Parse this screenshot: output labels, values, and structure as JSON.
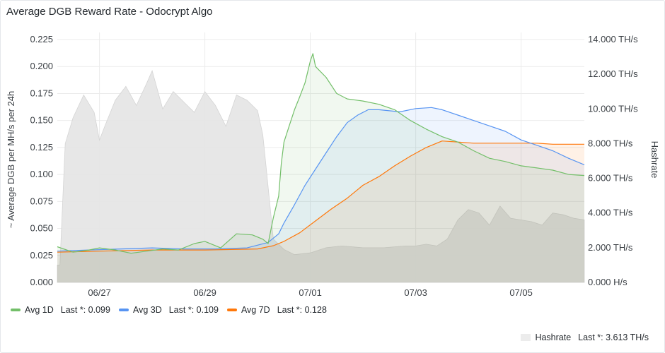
{
  "panel": {
    "title": "Average DGB Reward Rate - Odocrypt Algo"
  },
  "legend": {
    "avg1d": {
      "name": "Avg 1D",
      "last": "Last *: 0.099"
    },
    "avg3d": {
      "name": "Avg 3D",
      "last": "Last *: 0.109"
    },
    "avg7d": {
      "name": "Avg 7D",
      "last": "Last *: 0.128"
    },
    "hashrate": {
      "name": "Hashrate",
      "last": "Last *: 3.613 TH/s"
    }
  },
  "chart_data": {
    "type": "line",
    "ylabel": "~ Average DGB per MH/s per 24h",
    "y2label": "Hashrate",
    "ylim": [
      0,
      0.225
    ],
    "y2lim": [
      0,
      14
    ],
    "yticks": [
      "0.000",
      "0.025",
      "0.050",
      "0.075",
      "0.100",
      "0.125",
      "0.150",
      "0.175",
      "0.200",
      "0.225"
    ],
    "y2ticks": [
      "0.000 H/s",
      "2.000 TH/s",
      "4.000 TH/s",
      "6.000 TH/s",
      "8.000 TH/s",
      "10.000 TH/s",
      "12.000 TH/s",
      "14.000 TH/s"
    ],
    "xticks": [
      {
        "day": 1.0,
        "label": "06/27"
      },
      {
        "day": 3.0,
        "label": "06/29"
      },
      {
        "day": 5.0,
        "label": "07/01"
      },
      {
        "day": 7.0,
        "label": "07/03"
      },
      {
        "day": 9.0,
        "label": "07/05"
      }
    ],
    "xlim": [
      0.2,
      10.2
    ],
    "colors": {
      "avg1d": "#73bf69",
      "avg3d": "#5794f2",
      "avg7d": "#ff780a",
      "hashrate": "#e6e6e6"
    },
    "series": [
      {
        "name": "Avg 1D",
        "x": [
          0.2,
          0.5,
          0.8,
          1.0,
          1.3,
          1.6,
          1.9,
          2.2,
          2.5,
          2.8,
          3.0,
          3.3,
          3.6,
          3.9,
          4.1,
          4.2,
          4.3,
          4.4,
          4.45,
          4.5,
          4.6,
          4.7,
          4.8,
          4.9,
          5.0,
          5.05,
          5.1,
          5.3,
          5.5,
          5.7,
          6.0,
          6.3,
          6.6,
          6.9,
          7.2,
          7.5,
          7.8,
          8.1,
          8.4,
          8.7,
          9.0,
          9.3,
          9.6,
          9.9,
          10.2
        ],
        "y": [
          0.033,
          0.028,
          0.03,
          0.032,
          0.03,
          0.027,
          0.029,
          0.031,
          0.03,
          0.036,
          0.038,
          0.032,
          0.045,
          0.044,
          0.04,
          0.036,
          0.06,
          0.08,
          0.11,
          0.13,
          0.145,
          0.16,
          0.172,
          0.185,
          0.205,
          0.212,
          0.2,
          0.19,
          0.175,
          0.17,
          0.168,
          0.165,
          0.16,
          0.15,
          0.142,
          0.135,
          0.13,
          0.122,
          0.115,
          0.112,
          0.108,
          0.106,
          0.104,
          0.1,
          0.099
        ]
      },
      {
        "name": "Avg 3D",
        "x": [
          0.2,
          0.8,
          1.4,
          2.0,
          2.6,
          3.2,
          3.8,
          4.2,
          4.4,
          4.5,
          4.7,
          4.9,
          5.1,
          5.3,
          5.5,
          5.7,
          5.9,
          6.1,
          6.3,
          6.5,
          6.7,
          7.0,
          7.3,
          7.5,
          7.8,
          8.1,
          8.4,
          8.7,
          9.0,
          9.3,
          9.6,
          9.9,
          10.2
        ],
        "y": [
          0.029,
          0.03,
          0.031,
          0.032,
          0.031,
          0.031,
          0.032,
          0.037,
          0.045,
          0.055,
          0.072,
          0.09,
          0.105,
          0.12,
          0.135,
          0.148,
          0.155,
          0.16,
          0.16,
          0.159,
          0.158,
          0.161,
          0.162,
          0.16,
          0.155,
          0.15,
          0.145,
          0.14,
          0.132,
          0.127,
          0.122,
          0.115,
          0.109
        ]
      },
      {
        "name": "Avg 7D",
        "x": [
          0.2,
          1.0,
          2.0,
          3.0,
          4.0,
          4.3,
          4.5,
          4.8,
          5.1,
          5.4,
          5.7,
          6.0,
          6.3,
          6.6,
          6.9,
          7.2,
          7.5,
          7.8,
          8.1,
          8.4,
          8.7,
          9.0,
          9.3,
          9.6,
          9.9,
          10.2
        ],
        "y": [
          0.028,
          0.029,
          0.03,
          0.03,
          0.031,
          0.034,
          0.038,
          0.046,
          0.057,
          0.068,
          0.078,
          0.09,
          0.098,
          0.108,
          0.117,
          0.125,
          0.131,
          0.13,
          0.129,
          0.129,
          0.129,
          0.129,
          0.129,
          0.128,
          0.128,
          0.128
        ]
      },
      {
        "name": "Hashrate",
        "unit": "TH/s",
        "x": [
          0.2,
          0.25,
          0.35,
          0.5,
          0.7,
          0.9,
          1.0,
          1.1,
          1.3,
          1.5,
          1.7,
          1.9,
          2.0,
          2.2,
          2.4,
          2.6,
          2.8,
          3.0,
          3.2,
          3.4,
          3.6,
          3.8,
          4.0,
          4.1,
          4.15,
          4.2,
          4.3,
          4.5,
          4.7,
          5.0,
          5.3,
          5.6,
          6.0,
          6.4,
          6.8,
          7.0,
          7.2,
          7.4,
          7.6,
          7.8,
          8.0,
          8.2,
          8.4,
          8.6,
          8.8,
          9.0,
          9.2,
          9.4,
          9.6,
          9.8,
          10.0,
          10.2
        ],
        "y": [
          1.0,
          1.0,
          8.0,
          9.5,
          10.8,
          9.8,
          8.2,
          9.0,
          10.5,
          11.3,
          10.2,
          11.5,
          12.2,
          10.0,
          11.0,
          10.4,
          9.8,
          11.0,
          10.2,
          9.0,
          10.8,
          10.5,
          9.9,
          8.5,
          7.0,
          5.5,
          2.5,
          1.9,
          1.6,
          1.7,
          2.0,
          2.1,
          2.0,
          2.0,
          2.1,
          2.1,
          2.2,
          2.1,
          2.5,
          3.6,
          4.2,
          4.0,
          3.3,
          4.4,
          3.7,
          3.6,
          3.5,
          3.3,
          4.0,
          3.9,
          3.7,
          3.6
        ]
      }
    ]
  }
}
